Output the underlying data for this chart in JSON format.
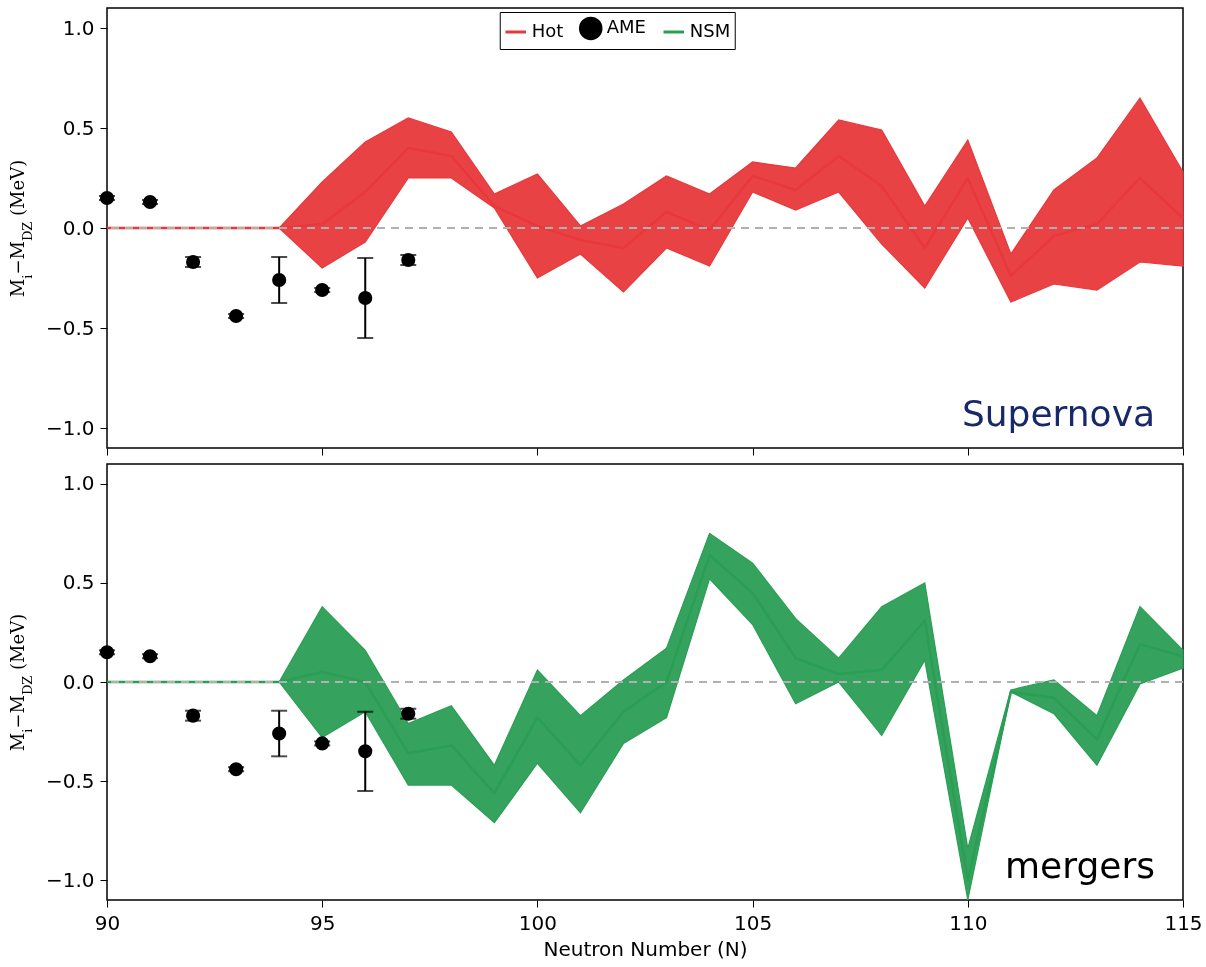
{
  "chart_data": [
    {
      "type": "line",
      "ylabel": "M$_{i}$−M$_{DZ}$ (MeV)",
      "xlim": [
        90,
        115
      ],
      "xticks": [
        90,
        95,
        100,
        105,
        110,
        115
      ],
      "ylim": [
        -1.1,
        1.1
      ],
      "yticks": [
        {
          "value": -1,
          "label": "−1.0"
        },
        {
          "value": -0.5,
          "label": "−0.5"
        },
        {
          "value": 0,
          "label": "0.0"
        },
        {
          "value": 0.5,
          "label": "0.5"
        },
        {
          "value": 1,
          "label": "1.0"
        }
      ],
      "tick_labels": "y",
      "legend": "top",
      "grid": false,
      "annotations": [
        "Supernova"
      ],
      "ref_lines": [
        {
          "axis": "y",
          "value": 0,
          "color": "#b0b0b0",
          "line_style": "dashed"
        }
      ],
      "series": [
        {
          "name": "Hot",
          "color": "#e8383b",
          "x": [
            90,
            91,
            92,
            93,
            94,
            95,
            96,
            97,
            98,
            99,
            100,
            101,
            102,
            103,
            104,
            105,
            106,
            107,
            108,
            109,
            110,
            111,
            112,
            113,
            114,
            115
          ],
          "values": [
            0,
            0,
            0,
            0,
            0,
            0.02,
            0.18,
            0.4,
            0.36,
            0.11,
            0.01,
            -0.06,
            -0.1,
            0.08,
            -0.01,
            0.26,
            0.19,
            0.36,
            0.21,
            -0.1,
            0.25,
            -0.24,
            -0.04,
            0.02,
            0.25,
            0.05
          ],
          "lower": [
            null,
            null,
            null,
            null,
            0,
            -0.2,
            -0.07,
            0.25,
            0.25,
            0.1,
            -0.25,
            -0.13,
            -0.32,
            -0.1,
            -0.19,
            0.18,
            0.09,
            0.18,
            -0.08,
            -0.3,
            0.05,
            -0.37,
            -0.28,
            -0.31,
            -0.17,
            -0.19
          ],
          "upper": [
            null,
            null,
            null,
            null,
            0,
            0.23,
            0.43,
            0.55,
            0.48,
            0.17,
            0.27,
            0.01,
            0.12,
            0.26,
            0.17,
            0.33,
            0.3,
            0.54,
            0.49,
            0.11,
            0.44,
            -0.13,
            0.19,
            0.35,
            0.65,
            0.28
          ]
        },
        {
          "name": "AME",
          "type": "scatter",
          "color": "#000000",
          "x": [
            90,
            91,
            92,
            93,
            94,
            95,
            96,
            97
          ],
          "values": [
            0.15,
            0.13,
            -0.17,
            -0.44,
            -0.26,
            -0.31,
            -0.35,
            -0.16
          ],
          "errors": [
            0.01,
            0.01,
            0.025,
            0.01,
            0.115,
            0.01,
            0.2,
            0.025
          ]
        }
      ]
    },
    {
      "type": "line",
      "xlabel": "Neutron Number (N)",
      "ylabel": "M$_{i}$−M$_{DZ}$ (MeV)",
      "xlim": [
        90,
        115
      ],
      "xticks": [
        90,
        95,
        100,
        105,
        110,
        115
      ],
      "ylim": [
        -1.1,
        1.1
      ],
      "yticks": [
        {
          "value": -1,
          "label": "−1.0"
        },
        {
          "value": -0.5,
          "label": "−0.5"
        },
        {
          "value": 0,
          "label": "0.0"
        },
        {
          "value": 0.5,
          "label": "0.5"
        },
        {
          "value": 1,
          "label": "1.0"
        }
      ],
      "grid": false,
      "annotations": [
        "mergers"
      ],
      "ref_lines": [
        {
          "axis": "y",
          "value": 0,
          "color": "#b0b0b0",
          "line_style": "dashed"
        }
      ],
      "series": [
        {
          "name": "NSM",
          "color": "#2a9e55",
          "x": [
            90,
            91,
            92,
            93,
            94,
            95,
            96,
            97,
            98,
            99,
            100,
            101,
            102,
            103,
            104,
            105,
            106,
            107,
            108,
            109,
            110,
            111,
            112,
            113,
            114,
            115
          ],
          "values": [
            0,
            0,
            0,
            0,
            0,
            0.05,
            0.0,
            -0.36,
            -0.32,
            -0.56,
            -0.18,
            -0.42,
            -0.15,
            0.0,
            0.64,
            0.45,
            0.12,
            0.04,
            0.06,
            0.31,
            -1.0,
            -0.05,
            -0.08,
            -0.29,
            0.19,
            0.13
          ],
          "lower": [
            null,
            null,
            null,
            null,
            0,
            -0.28,
            -0.15,
            -0.52,
            -0.52,
            -0.71,
            -0.41,
            -0.66,
            -0.31,
            -0.18,
            0.52,
            0.29,
            -0.11,
            0.0,
            -0.27,
            0.11,
            -1.1,
            -0.05,
            -0.16,
            -0.42,
            -0.01,
            0.07
          ],
          "upper": [
            null,
            null,
            null,
            null,
            0,
            0.38,
            0.16,
            -0.21,
            -0.12,
            -0.42,
            0.06,
            -0.17,
            0.01,
            0.17,
            0.75,
            0.6,
            0.32,
            0.12,
            0.38,
            0.5,
            -0.84,
            -0.04,
            0.01,
            -0.17,
            0.38,
            0.16
          ]
        },
        {
          "name": "AME",
          "type": "scatter",
          "color": "#000000",
          "x": [
            90,
            91,
            92,
            93,
            94,
            95,
            96,
            97
          ],
          "values": [
            0.15,
            0.13,
            -0.17,
            -0.44,
            -0.26,
            -0.31,
            -0.35,
            -0.16
          ],
          "errors": [
            0.01,
            0.01,
            0.025,
            0.01,
            0.115,
            0.01,
            0.2,
            0.025
          ]
        }
      ]
    }
  ]
}
